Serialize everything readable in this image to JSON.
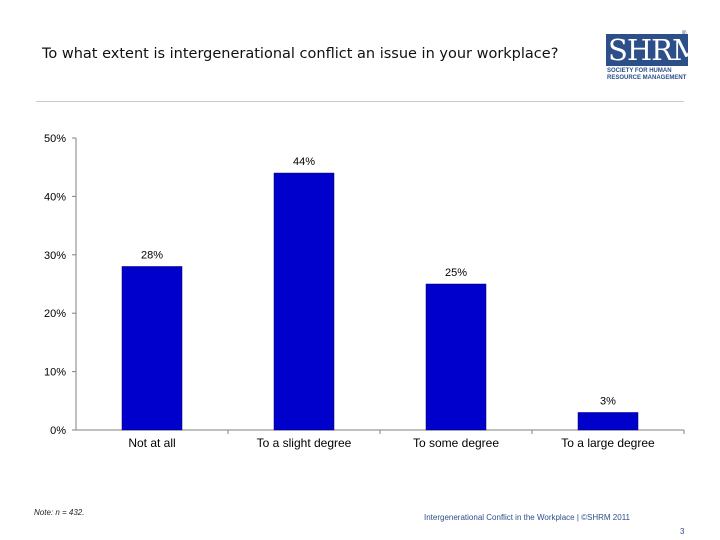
{
  "header": {
    "title": "To what extent is intergenerational conflict an issue in your workplace?",
    "logo": {
      "mark": "SHRM",
      "registered": "®",
      "sub_line1": "SOCIETY FOR HUMAN",
      "sub_line2": "RESOURCE MANAGEMENT"
    }
  },
  "chart_data": {
    "type": "bar",
    "categories": [
      "Not at all",
      "To a slight degree",
      "To some degree",
      "To a large degree"
    ],
    "values": [
      28,
      44,
      25,
      3
    ],
    "value_labels": [
      "28%",
      "44%",
      "25%",
      "3%"
    ],
    "title": "To what extent is intergenerational conflict an issue in your workplace?",
    "ylim": [
      0,
      50
    ],
    "yticks": [
      0,
      10,
      20,
      30,
      40,
      50
    ],
    "ytick_labels": [
      "0%",
      "10%",
      "20%",
      "30%",
      "40%",
      "50%"
    ],
    "bar_color": "#0000cc",
    "grid": false,
    "legend": "none"
  },
  "footer": {
    "note": "Note: n = 432.",
    "source": "Intergenerational Conflict in the Workplace | ©SHRM 2011",
    "page": "3"
  }
}
